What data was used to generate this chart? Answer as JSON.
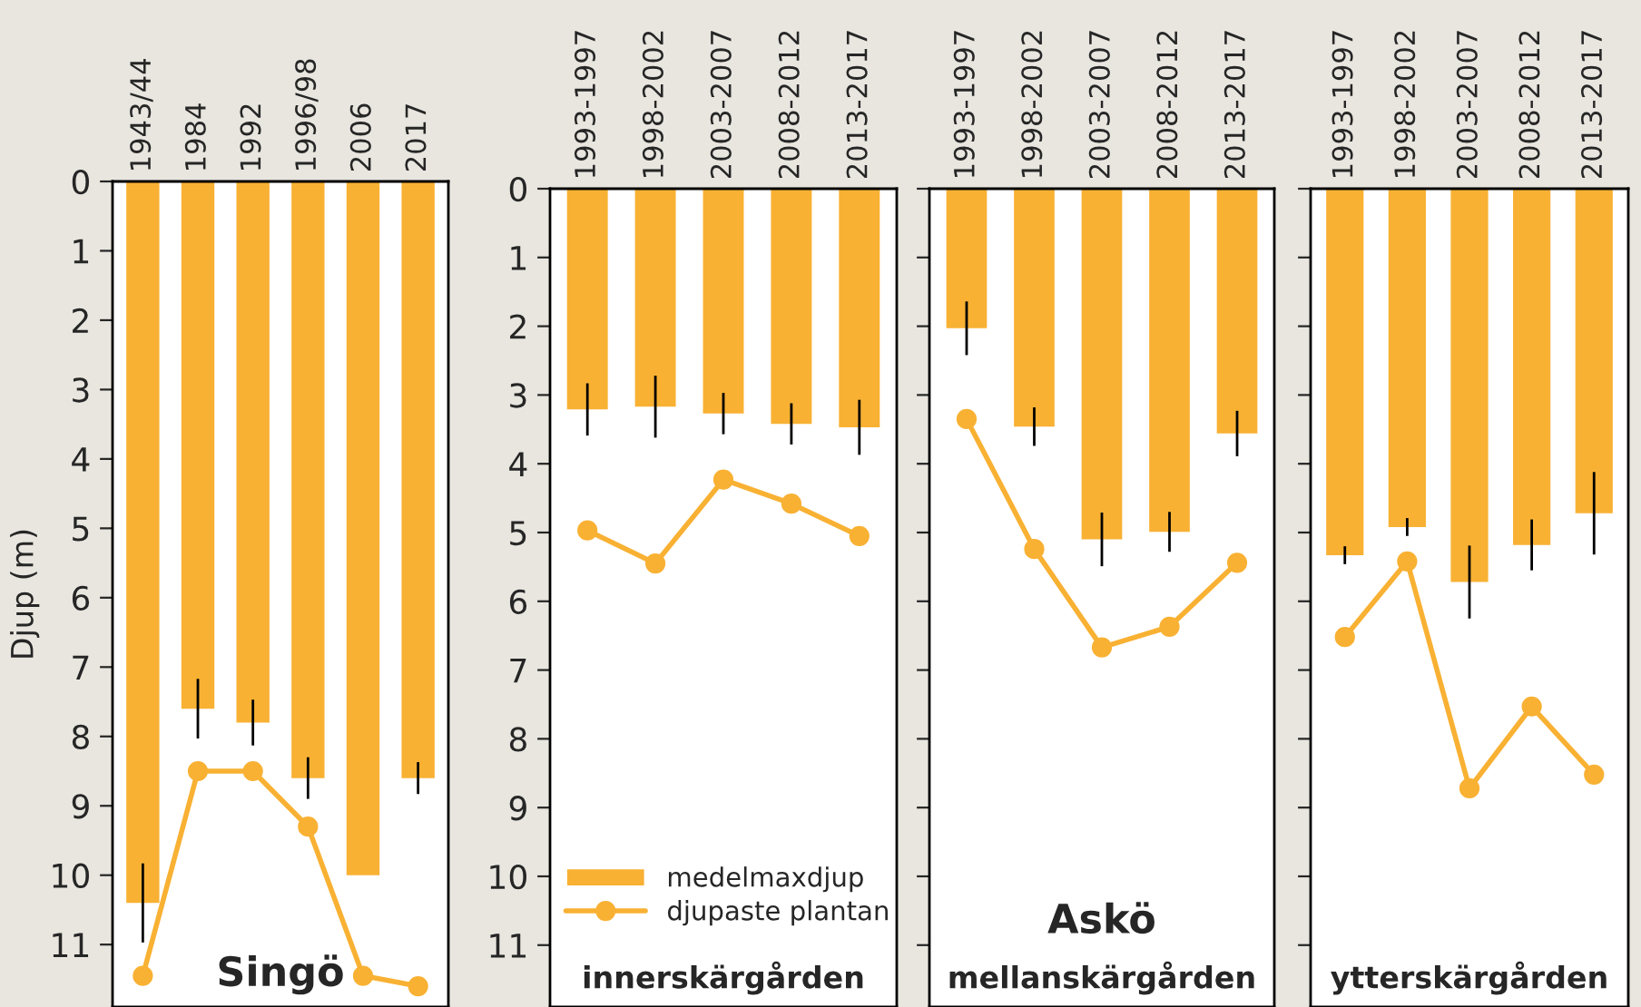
{
  "chart_data": [
    {
      "type": "bar",
      "ylabel": "Djup (m)",
      "categories": [
        "1943/44",
        "1984",
        "1992",
        "1996/98",
        "2006",
        "2017"
      ],
      "ylim": [
        11.9,
        0
      ],
      "yticks": [
        0,
        1,
        2,
        3,
        4,
        5,
        6,
        7,
        8,
        9,
        10,
        11
      ],
      "grid": false,
      "legend": false,
      "annotations": [
        "Singö"
      ],
      "series": [
        {
          "color": "#f8b133",
          "values": [
            10.4,
            7.6,
            7.8,
            8.6,
            10.0,
            8.6
          ],
          "errors": [
            0.57,
            0.43,
            0.33,
            0.3,
            null,
            0.23
          ]
        },
        {
          "type": "line",
          "color": "#f8b133",
          "marker": "circle",
          "values": [
            11.45,
            8.5,
            8.5,
            9.3,
            11.45,
            11.6
          ]
        }
      ]
    },
    {
      "type": "bar",
      "categories": [
        "1993-1997",
        "1998-2002",
        "2003-2007",
        "2008-2012",
        "2013-2017"
      ],
      "ylim": [
        11.9,
        0
      ],
      "yticks": [
        0,
        1,
        2,
        3,
        4,
        5,
        6,
        7,
        8,
        9,
        10,
        11
      ],
      "grid": false,
      "legend": "bottom left",
      "annotations": [
        "innerskärgården"
      ],
      "series": [
        {
          "name": "medelmaxdjup",
          "color": "#f8b133",
          "values": [
            3.21,
            3.17,
            3.27,
            3.42,
            3.47
          ],
          "errors": [
            0.38,
            0.45,
            0.3,
            0.3,
            0.4
          ]
        },
        {
          "type": "line",
          "name": "djupaste plantan",
          "color": "#f8b133",
          "marker": "circle",
          "values": [
            4.97,
            5.45,
            4.23,
            4.58,
            5.05
          ]
        }
      ]
    },
    {
      "type": "bar",
      "categories": [
        "1993-1997",
        "1998-2002",
        "2003-2007",
        "2008-2012",
        "2013-2017"
      ],
      "ylim": [
        11.9,
        0
      ],
      "yticks": [
        0,
        1,
        2,
        3,
        4,
        5,
        6,
        7,
        8,
        9,
        10,
        11
      ],
      "grid": false,
      "legend": false,
      "tick_labels": "x",
      "annotations": [
        "Askö",
        "mellanskärgården"
      ],
      "series": [
        {
          "color": "#f8b133",
          "values": [
            2.03,
            3.46,
            5.1,
            4.99,
            3.56
          ],
          "errors": [
            0.39,
            0.28,
            0.39,
            0.29,
            0.33
          ]
        },
        {
          "type": "line",
          "color": "#f8b133",
          "marker": "circle",
          "values": [
            3.35,
            5.24,
            6.67,
            6.37,
            5.44
          ]
        }
      ]
    },
    {
      "type": "bar",
      "categories": [
        "1993-1997",
        "1998-2002",
        "2003-2007",
        "2008-2012",
        "2013-2017"
      ],
      "ylim": [
        11.9,
        0
      ],
      "yticks": [
        0,
        1,
        2,
        3,
        4,
        5,
        6,
        7,
        8,
        9,
        10,
        11
      ],
      "grid": false,
      "legend": false,
      "tick_labels": "x",
      "annotations": [
        "ytterskärgården"
      ],
      "series": [
        {
          "color": "#f8b133",
          "values": [
            5.33,
            4.92,
            5.72,
            5.18,
            4.72
          ],
          "errors": [
            0.13,
            0.13,
            0.53,
            0.37,
            0.6
          ]
        },
        {
          "type": "line",
          "color": "#f8b133",
          "marker": "circle",
          "values": [
            6.52,
            5.42,
            8.72,
            7.53,
            8.52
          ]
        }
      ]
    }
  ]
}
